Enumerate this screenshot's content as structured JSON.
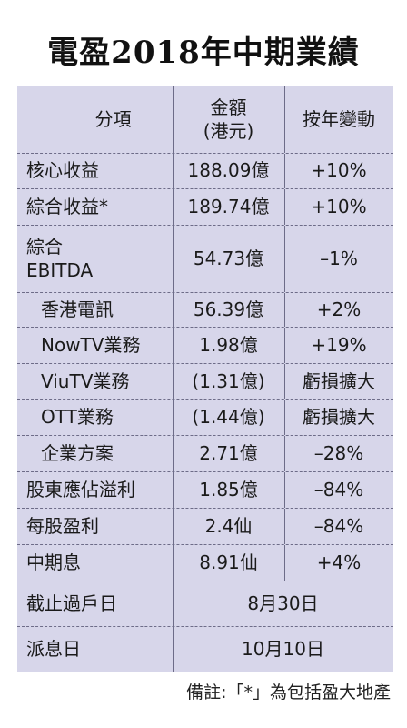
{
  "title": "電盈2018年中期業績",
  "headers": {
    "item": "分項",
    "amount_line1": "金額",
    "amount_line2": "(港元)",
    "change": "按年變動"
  },
  "rows": [
    {
      "item": "核心收益",
      "amount": "188.09億",
      "change": "+10%"
    },
    {
      "item": "綜合收益*",
      "amount": "189.74億",
      "change": "+10%"
    },
    {
      "item_line1": "綜合",
      "item_line2": "EBITDA",
      "amount": "54.73億",
      "change": "–1%"
    },
    {
      "item": "香港電訊",
      "amount": "56.39億",
      "change": "+2%"
    },
    {
      "item": "NowTV業務",
      "amount": "1.98億",
      "change": "+19%"
    },
    {
      "item": "ViuTV業務",
      "amount": "(1.31億)",
      "change": "虧損擴大"
    },
    {
      "item": "OTT業務",
      "amount": "(1.44億)",
      "change": "虧損擴大"
    },
    {
      "item": "企業方案",
      "amount": "2.71億",
      "change": "–28%"
    },
    {
      "item": "股東應佔溢利",
      "amount": "1.85億",
      "change": "–84%"
    },
    {
      "item": "每股盈利",
      "amount": "2.4仙",
      "change": "–84%"
    },
    {
      "item": "中期息",
      "amount": "8.91仙",
      "change": "+4%"
    }
  ],
  "dates": [
    {
      "label": "截止過戶日",
      "value": "8月30日"
    },
    {
      "label": "派息日",
      "value": "10月10日"
    }
  ],
  "note": "備註:「*」為包括盈大地產"
}
